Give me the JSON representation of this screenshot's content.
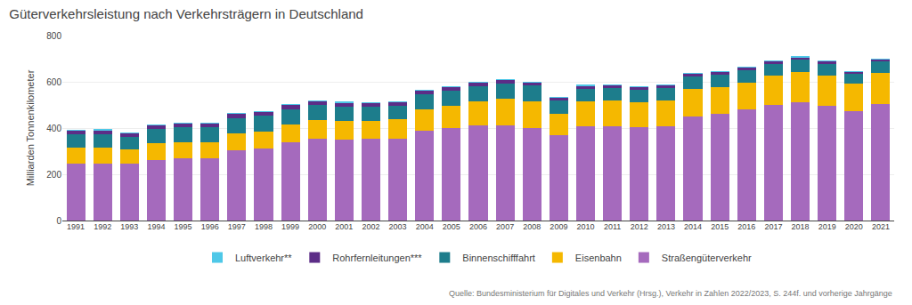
{
  "chart_data": {
    "type": "bar",
    "stacked": true,
    "title": "Güterverkehrsleistung nach Verkehrsträgern in Deutschland",
    "ylabel": "Milliarden Tonnenkilometer",
    "annotations": [
      "Quelle: Bundesministerium für Digitales und Verkehr (Hrsg.), Verkehr in Zahlen 2022/2023, S. 244f. und vorherige Jahrgänge"
    ],
    "categories": [
      "1991",
      "1992",
      "1993",
      "1994",
      "1995",
      "1996",
      "1997",
      "1998",
      "1999",
      "2000",
      "2001",
      "2002",
      "2003",
      "2004",
      "2005",
      "2006",
      "2007",
      "2008",
      "2009",
      "2010",
      "2011",
      "2012",
      "2013",
      "2014",
      "2015",
      "2016",
      "2017",
      "2018",
      "2019",
      "2020",
      "2021"
    ],
    "series": [
      {
        "name": "Straßengüterverkehr",
        "color": "#a56abd",
        "values": [
          245,
          248,
          246,
          262,
          268,
          270,
          302,
          313,
          340,
          352,
          351,
          353,
          355,
          387,
          400,
          410,
          412,
          400,
          368,
          407,
          407,
          404,
          406,
          450,
          461,
          480,
          500,
          512,
          496,
          474,
          505
        ]
      },
      {
        "name": "Eisenbahn",
        "color": "#f5b800",
        "values": [
          72,
          68,
          62,
          72,
          72,
          68,
          76,
          72,
          77,
          82,
          79,
          76,
          83,
          93,
          96,
          107,
          114,
          115,
          95,
          107,
          113,
          109,
          112,
          119,
          116,
          116,
          126,
          130,
          132,
          117,
          133
        ]
      },
      {
        "name": "Binnenschifffahrt",
        "color": "#1d7d8c",
        "values": [
          55,
          57,
          52,
          61,
          62,
          65,
          65,
          67,
          64,
          65,
          64,
          63,
          57,
          65,
          64,
          64,
          67,
          68,
          56,
          57,
          55,
          53,
          56,
          56,
          55,
          55,
          51,
          53,
          50,
          42,
          49
        ]
      },
      {
        "name": "Rohrfernleitungen***",
        "color": "#5c2d87",
        "values": [
          19,
          19,
          19,
          19,
          19,
          19,
          19,
          19,
          19,
          18,
          17,
          17,
          17,
          17,
          17,
          16,
          16,
          15,
          14,
          13,
          12,
          11,
          11,
          11,
          11,
          11,
          12,
          12,
          12,
          11,
          12
        ]
      },
      {
        "name": "Luftverkehr**",
        "color": "#4ec8e8",
        "values": [
          1,
          1,
          1,
          1,
          1,
          1,
          1,
          1,
          1,
          1,
          1,
          1,
          1,
          1,
          1,
          1,
          1,
          1,
          1,
          1,
          1,
          1,
          1,
          1,
          1,
          1,
          1,
          1,
          1,
          1,
          1
        ]
      }
    ],
    "ylim": [
      0,
      800
    ],
    "yticks": [
      0,
      200,
      400,
      600,
      800
    ],
    "grid": true,
    "legend": "bottom"
  }
}
